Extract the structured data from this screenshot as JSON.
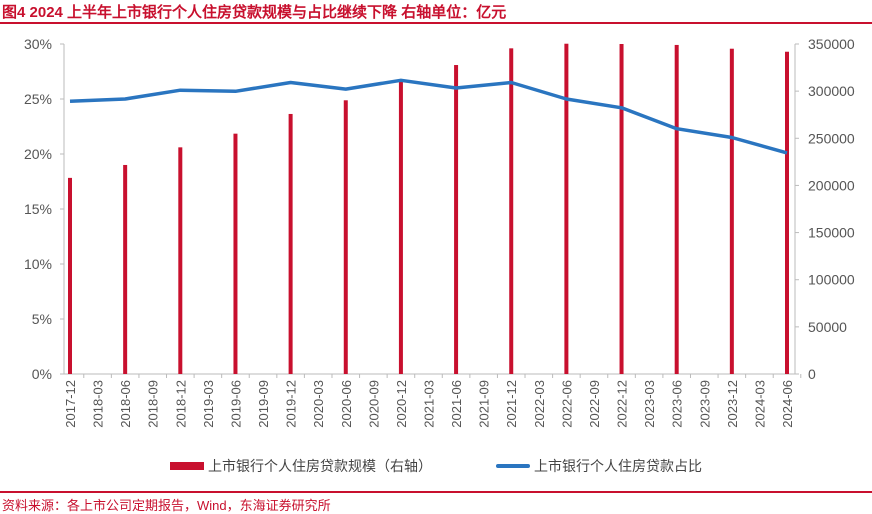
{
  "title": "图4  2024 上半年上市银行个人住房贷款规模与占比继续下降  右轴单位：亿元",
  "source": "资料来源：各上市公司定期报告，Wind，东海证券研究所",
  "colors": {
    "bar": "#c8102e",
    "line": "#2a75c0",
    "title": "#c8102e"
  },
  "chart_data": {
    "type": "bar+line",
    "categories": [
      "2017-12",
      "2018-03",
      "2018-06",
      "2018-09",
      "2018-12",
      "2019-03",
      "2019-06",
      "2019-09",
      "2019-12",
      "2020-03",
      "2020-06",
      "2020-09",
      "2020-12",
      "2021-03",
      "2021-06",
      "2021-09",
      "2021-12",
      "2022-03",
      "2022-06",
      "2022-09",
      "2022-12",
      "2023-03",
      "2023-06",
      "2023-09",
      "2023-12",
      "2024-03",
      "2024-06"
    ],
    "y_left": {
      "ticks": [
        "0%",
        "5%",
        "10%",
        "15%",
        "20%",
        "25%",
        "30%"
      ],
      "range": [
        0,
        30
      ]
    },
    "y_right": {
      "ticks": [
        "0",
        "50000",
        "100000",
        "150000",
        "200000",
        "250000",
        "300000",
        "350000"
      ],
      "range": [
        0,
        350000
      ]
    },
    "series": [
      {
        "name": "上市银行个人住房贷款规模（右轴）",
        "type": "bar",
        "axis": "right",
        "points": [
          {
            "x": "2017-12",
            "y": 208000
          },
          {
            "x": "2018-06",
            "y": 221700
          },
          {
            "x": "2018-12",
            "y": 240400
          },
          {
            "x": "2019-06",
            "y": 254900
          },
          {
            "x": "2019-12",
            "y": 275800
          },
          {
            "x": "2020-06",
            "y": 290300
          },
          {
            "x": "2020-12",
            "y": 310000
          },
          {
            "x": "2021-06",
            "y": 327700
          },
          {
            "x": "2021-12",
            "y": 345400
          },
          {
            "x": "2022-06",
            "y": 350300
          },
          {
            "x": "2022-12",
            "y": 350000
          },
          {
            "x": "2023-06",
            "y": 349000
          },
          {
            "x": "2023-12",
            "y": 345000
          },
          {
            "x": "2024-06",
            "y": 341800
          }
        ]
      },
      {
        "name": "上市银行个人住房贷款占比",
        "type": "line",
        "axis": "left",
        "points": [
          {
            "x": "2017-12",
            "y": 24.8
          },
          {
            "x": "2018-06",
            "y": 25.0
          },
          {
            "x": "2018-12",
            "y": 25.8
          },
          {
            "x": "2019-06",
            "y": 25.7
          },
          {
            "x": "2019-12",
            "y": 26.5
          },
          {
            "x": "2020-06",
            "y": 25.9
          },
          {
            "x": "2020-12",
            "y": 26.7
          },
          {
            "x": "2021-06",
            "y": 26.0
          },
          {
            "x": "2021-12",
            "y": 26.5
          },
          {
            "x": "2022-06",
            "y": 25.0
          },
          {
            "x": "2022-12",
            "y": 24.2
          },
          {
            "x": "2023-06",
            "y": 22.3
          },
          {
            "x": "2023-12",
            "y": 21.5
          },
          {
            "x": "2024-06",
            "y": 20.1
          }
        ]
      }
    ],
    "grid": false,
    "legend_position": "bottom"
  }
}
